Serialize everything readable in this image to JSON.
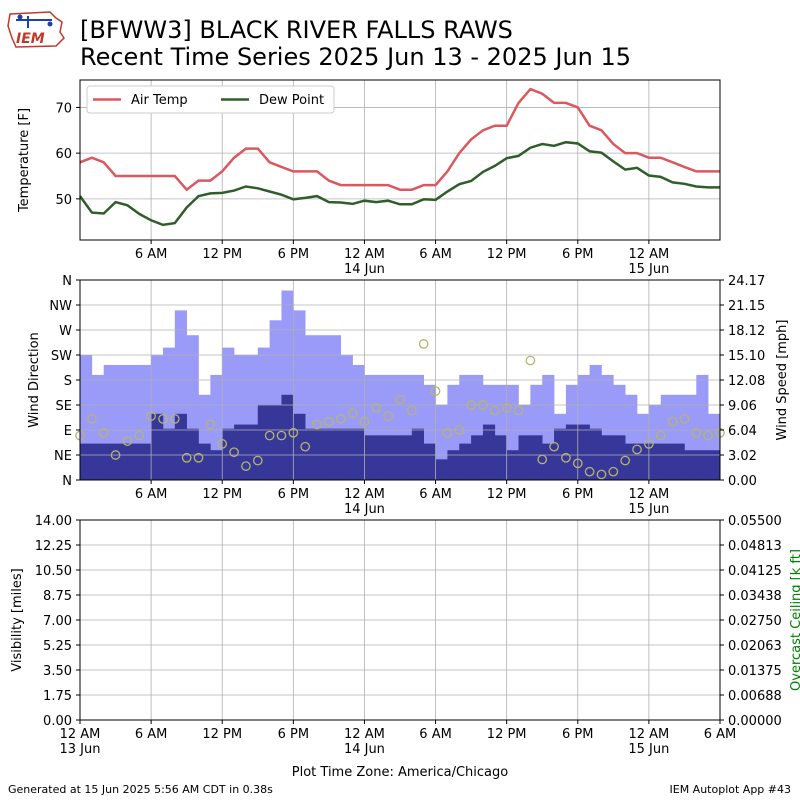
{
  "header": {
    "title": "[BFWW3] BLACK RIVER FALLS RAWS",
    "subtitle": "Recent Time Series 2025 Jun 13 - 2025 Jun 15",
    "logo_text": "IEM"
  },
  "footer": {
    "generated": "Generated at 15 Jun 2025 5:56 AM CDT in 0.38s",
    "app": "IEM Autoplot App #43"
  },
  "colors": {
    "air_temp": "#d9595f",
    "dew_point": "#2f5e2a",
    "gust_bar": "#9a9af8",
    "speed_bar": "#373799",
    "direction_marker": "#b5b56e",
    "grid": "#b0b0b0",
    "ceiling_axis": "#008000"
  },
  "chart_data": [
    {
      "type": "line",
      "panel": "temperature",
      "ylabel": "Temperature [F]",
      "xlim_hours": [
        0,
        54
      ],
      "ylim": [
        41,
        76
      ],
      "yticks": [
        50,
        60,
        70
      ],
      "grid": true,
      "legend_position": "top-left",
      "x_tick_hours": [
        6,
        12,
        18,
        24,
        30,
        36,
        42,
        48
      ],
      "x_tick_labels": [
        "6 AM",
        "12 PM",
        "6 PM",
        "12 AM\n14 Jun",
        "6 AM",
        "12 PM",
        "6 PM",
        "12 AM\n15 Jun"
      ],
      "series": [
        {
          "name": "Air Temp",
          "x": [
            0,
            1,
            2,
            3,
            4,
            5,
            6,
            7,
            8,
            9,
            10,
            11,
            12,
            13,
            14,
            15,
            16,
            17,
            18,
            19,
            20,
            21,
            22,
            23,
            24,
            25,
            26,
            27,
            28,
            29,
            30,
            31,
            32,
            33,
            34,
            35,
            36,
            37,
            38,
            39,
            40,
            41,
            42,
            43,
            44,
            45,
            46,
            47,
            48,
            49,
            50,
            51,
            52,
            53,
            54
          ],
          "values": [
            58,
            59,
            58,
            55,
            55,
            55,
            55,
            55,
            55,
            52,
            54,
            54,
            56,
            59,
            61,
            61,
            58,
            57,
            56,
            56,
            56,
            54,
            53,
            53,
            53,
            53,
            53,
            52,
            52,
            53,
            53,
            56,
            60,
            63,
            65,
            66,
            66,
            71,
            74,
            73,
            71,
            71,
            70,
            66,
            65,
            62,
            60,
            60,
            59,
            59,
            58,
            57,
            56,
            56,
            56
          ]
        },
        {
          "name": "Dew Point",
          "x": [
            0,
            1,
            2,
            3,
            4,
            5,
            6,
            7,
            8,
            9,
            10,
            11,
            12,
            13,
            14,
            15,
            16,
            17,
            18,
            19,
            20,
            21,
            22,
            23,
            24,
            25,
            26,
            27,
            28,
            29,
            30,
            31,
            32,
            33,
            34,
            35,
            36,
            37,
            38,
            39,
            40,
            41,
            42,
            43,
            44,
            45,
            46,
            47,
            48,
            49,
            50,
            51,
            52,
            53,
            54
          ],
          "values": [
            50.6,
            47,
            46.8,
            49.3,
            48.6,
            46.7,
            45.3,
            44.3,
            44.7,
            48.1,
            50.6,
            51.2,
            51.3,
            51.8,
            52.7,
            52.3,
            51.6,
            50.9,
            49.9,
            50.2,
            50.6,
            49.3,
            49.2,
            48.9,
            49.6,
            49.3,
            49.6,
            48.8,
            48.8,
            49.9,
            49.8,
            51.6,
            53.2,
            53.9,
            55.9,
            57.2,
            58.9,
            59.4,
            61.2,
            62,
            61.6,
            62.4,
            62.1,
            60.4,
            60.1,
            58.2,
            56.4,
            56.8,
            55.1,
            54.8,
            53.6,
            53.3,
            52.7,
            52.5,
            52.5
          ]
        }
      ]
    },
    {
      "type": "bar",
      "panel": "wind",
      "ylabel": "Wind Direction",
      "y2label": "Wind Speed [mph]",
      "direction_ticks": [
        "N",
        "NE",
        "E",
        "SE",
        "S",
        "SW",
        "W",
        "NW",
        "N"
      ],
      "speed_ticks": [
        "0.00",
        "3.02",
        "6.04",
        "9.06",
        "12.08",
        "15.10",
        "18.12",
        "21.15",
        "24.17"
      ],
      "speed_ylim": [
        0,
        24.17
      ],
      "xlim_hours": [
        0,
        54
      ],
      "grid": true,
      "x_tick_hours": [
        6,
        12,
        18,
        24,
        30,
        36,
        42,
        48
      ],
      "x_tick_labels": [
        "6 AM",
        "12 PM",
        "6 PM",
        "12 AM\n14 Jun",
        "6 AM",
        "12 PM",
        "6 PM",
        "12 AM\n15 Jun"
      ],
      "series": [
        {
          "name": "Gust",
          "hours": [
            0,
            1,
            2,
            3,
            4,
            5,
            6,
            7,
            8,
            9,
            10,
            11,
            12,
            13,
            14,
            15,
            16,
            17,
            18,
            19,
            20,
            21,
            22,
            23,
            24,
            25,
            26,
            27,
            28,
            29,
            30,
            31,
            32,
            33,
            34,
            35,
            36,
            37,
            38,
            39,
            40,
            41,
            42,
            43,
            44,
            45,
            46,
            47,
            48,
            49,
            50,
            51,
            52,
            53,
            54
          ],
          "values": [
            15.1,
            12.7,
            13.9,
            13.9,
            13.9,
            13.9,
            15.1,
            16,
            20.5,
            17.5,
            10.3,
            12.7,
            16,
            15.1,
            15.1,
            16,
            19.3,
            22.9,
            20.5,
            17.5,
            17.5,
            17.5,
            15.1,
            13.9,
            12.7,
            12.7,
            12.7,
            12.7,
            12.7,
            11.5,
            9.1,
            11.5,
            12.7,
            12.7,
            11.5,
            11.5,
            11.5,
            9.1,
            11.5,
            12.7,
            8.0,
            11.5,
            12.7,
            13.9,
            12.7,
            11.5,
            10.3,
            8.0,
            9.1,
            10.3,
            10.3,
            10.3,
            12.7,
            8.0,
            8.0
          ]
        },
        {
          "name": "Speed",
          "hours": [
            0,
            1,
            2,
            3,
            4,
            5,
            6,
            7,
            8,
            9,
            10,
            11,
            12,
            13,
            14,
            15,
            16,
            17,
            18,
            19,
            20,
            21,
            22,
            23,
            24,
            25,
            26,
            27,
            28,
            29,
            30,
            31,
            32,
            33,
            34,
            35,
            36,
            37,
            38,
            39,
            40,
            41,
            42,
            43,
            44,
            45,
            46,
            47,
            48,
            49,
            50,
            51,
            52,
            53,
            54
          ],
          "values": [
            4.4,
            4.4,
            4.4,
            4.4,
            4.4,
            4.4,
            8.0,
            6.2,
            8.0,
            6.2,
            4.4,
            3.6,
            6.2,
            6.7,
            6.7,
            9.1,
            9.1,
            10.3,
            8.0,
            6.2,
            6.2,
            6.2,
            6.2,
            6.2,
            5.4,
            5.4,
            5.4,
            5.4,
            6.2,
            4.4,
            2.5,
            3.6,
            4.4,
            5.4,
            6.7,
            5.4,
            3.6,
            5.4,
            5.4,
            4.4,
            6.2,
            6.7,
            6.7,
            6.2,
            5.4,
            5.4,
            4.4,
            4.4,
            4.4,
            4.4,
            4.4,
            3.6,
            3.6,
            3.6,
            3.6
          ]
        },
        {
          "name": "Direction",
          "hours": [
            0,
            1,
            2,
            3,
            4,
            5,
            6,
            7,
            8,
            9,
            10,
            11,
            12,
            13,
            14,
            15,
            16,
            17,
            18,
            19,
            20,
            21,
            22,
            23,
            24,
            25,
            26,
            27,
            28,
            29,
            30,
            31,
            32,
            33,
            34,
            35,
            36,
            37,
            38,
            39,
            40,
            41,
            42,
            43,
            44,
            45,
            46,
            47,
            48,
            49,
            50,
            51,
            52,
            53,
            54
          ],
          "degrees": [
            80,
            110,
            85,
            45,
            70,
            80,
            115,
            110,
            110,
            40,
            40,
            100,
            65,
            50,
            25,
            35,
            80,
            80,
            85,
            60,
            100,
            105,
            110,
            120,
            105,
            130,
            115,
            145,
            125,
            245,
            160,
            85,
            90,
            135,
            135,
            125,
            130,
            125,
            215,
            37,
            60,
            40,
            30,
            15,
            10,
            15,
            35,
            55,
            65,
            80,
            105,
            110,
            85,
            80,
            85
          ]
        }
      ]
    },
    {
      "type": "line",
      "panel": "visibility",
      "ylabel": "Visibility [miles]",
      "y2label": "Overcast Ceiling [k ft]",
      "left_ticks": [
        "0.00",
        "1.75",
        "3.50",
        "5.25",
        "7.00",
        "8.75",
        "10.50",
        "12.25",
        "14.00"
      ],
      "right_ticks": [
        "0.00000",
        "0.00688",
        "0.01375",
        "0.02063",
        "0.02750",
        "0.03438",
        "0.04125",
        "0.04813",
        "0.05500"
      ],
      "xlabel": "Plot Time Zone: America/Chicago",
      "grid": true,
      "x_tick_labels": [
        "12 AM\n13 Jun",
        "6 AM",
        "12 PM",
        "6 PM",
        "12 AM\n14 Jun",
        "6 AM",
        "12 PM",
        "6 PM",
        "12 AM\n15 Jun",
        "6 AM"
      ],
      "series": []
    }
  ]
}
